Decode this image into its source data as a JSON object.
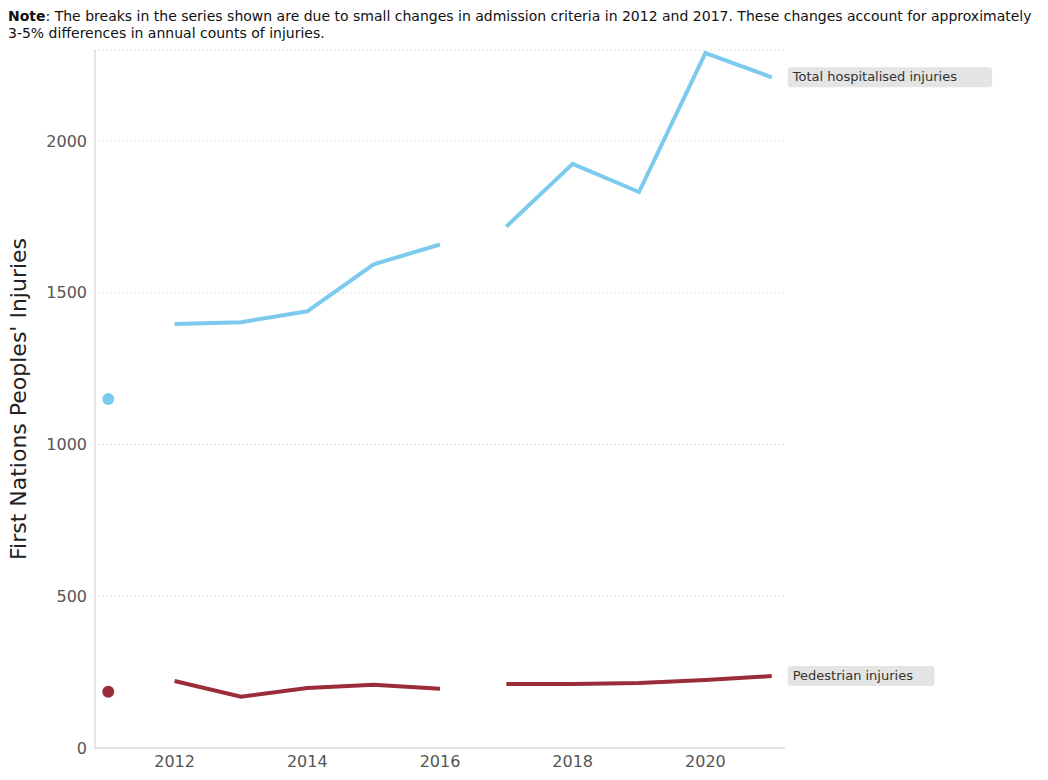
{
  "chart_data": {
    "type": "line",
    "annotations": [
      "Note: The breaks in the series shown are due to small changes in admission criteria in 2012 and 2017. These changes account for approximately 3-5% differences in annual counts of injuries."
    ],
    "y_label": "First Nations Peoples' Injuries",
    "x": [
      2011,
      2011.5,
      2012,
      2013,
      2014,
      2015,
      2016,
      2016.5,
      2017,
      2018,
      2019,
      2020,
      2021
    ],
    "series": [
      {
        "name": "Total hospitalised injuries",
        "color": "#7ccbee",
        "values": [
          1150,
          null,
          1397,
          1403,
          1439,
          1594,
          1659,
          null,
          1718,
          1925,
          1832,
          2290,
          2210
        ]
      },
      {
        "name": "Pedestrian injuries",
        "color": "#9b2d3a",
        "values": [
          185,
          null,
          221,
          169,
          198,
          208,
          195,
          null,
          211,
          211,
          214,
          224,
          237
        ]
      }
    ],
    "xlim": [
      2010.8,
      2021.2
    ],
    "xticks": [
      2012,
      2014,
      2016,
      2018,
      2020
    ],
    "ylim": [
      0,
      2300
    ],
    "yticks": [
      0,
      500,
      1000,
      1500,
      2000
    ],
    "grid": true
  }
}
